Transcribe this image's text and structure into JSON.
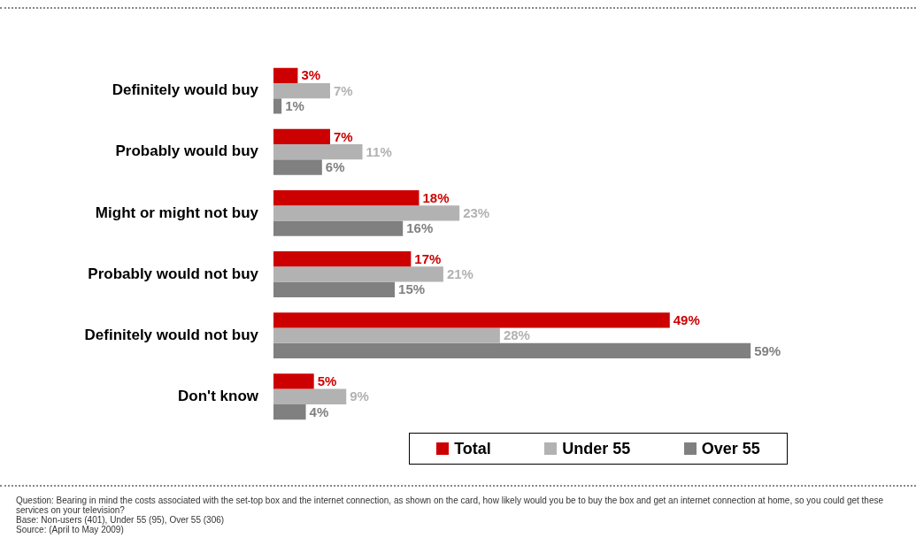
{
  "chart_data": {
    "type": "bar",
    "orientation": "horizontal",
    "categories": [
      "Definitely would buy",
      "Probably would buy",
      "Might or might not buy",
      "Probably would not buy",
      "Definitely would not buy",
      "Don't know"
    ],
    "series": [
      {
        "name": "Total",
        "color": "#cc0000",
        "values": [
          3,
          7,
          18,
          17,
          49,
          5
        ],
        "value_labels": [
          "3%",
          "7%",
          "18%",
          "17%",
          "49%",
          "5%"
        ]
      },
      {
        "name": "Under 55",
        "color": "#b2b2b2",
        "values": [
          7,
          11,
          23,
          21,
          28,
          9
        ],
        "value_labels": [
          "7%",
          "11%",
          "23%",
          "21%",
          "28%",
          "9%"
        ]
      },
      {
        "name": "Over 55",
        "color": "#808080",
        "values": [
          1,
          6,
          16,
          15,
          59,
          4
        ],
        "value_labels": [
          "1%",
          "6%",
          "16%",
          "15%",
          "59%",
          "4%"
        ]
      }
    ],
    "legend": "bottom right",
    "annotations": [
      "Question: Bearing in mind the costs associated with the set-top box and the internet connection, as shown on the card, how likely would you be to buy the box and get an internet connection at home, so you could get these services on your television?",
      "Base: Non-users (401), Under 55 (95), Over 55 (306)",
      "Source: (April to May 2009)"
    ]
  }
}
